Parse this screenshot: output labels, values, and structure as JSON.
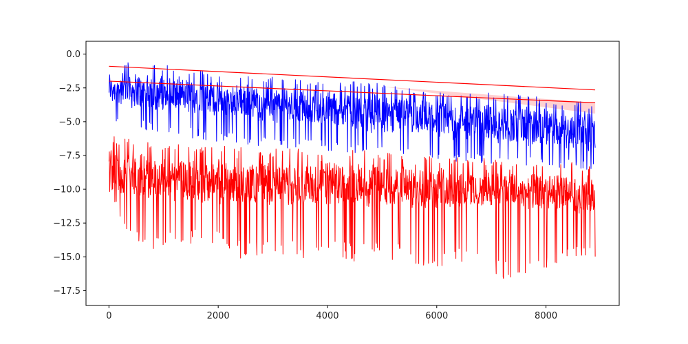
{
  "chart_data": {
    "type": "line",
    "title": "",
    "xlabel": "",
    "ylabel": "",
    "xlim": [
      -420,
      9340
    ],
    "ylim": [
      -18.6,
      0.95
    ],
    "x_ticks": [
      {
        "value": 0,
        "label": "0"
      },
      {
        "value": 2000,
        "label": "2000"
      },
      {
        "value": 4000,
        "label": "4000"
      },
      {
        "value": 6000,
        "label": "6000"
      },
      {
        "value": 8000,
        "label": "8000"
      }
    ],
    "y_ticks": [
      {
        "value": 0,
        "label": "0.0"
      },
      {
        "value": -2.5,
        "label": "−2.5"
      },
      {
        "value": -5,
        "label": "−5.0"
      },
      {
        "value": -7.5,
        "label": "−7.5"
      },
      {
        "value": -10,
        "label": "−10.0"
      },
      {
        "value": -12.5,
        "label": "−12.5"
      },
      {
        "value": -15,
        "label": "−15.0"
      },
      {
        "value": -17.5,
        "label": "−17.5"
      }
    ],
    "grid": false,
    "legend": "none",
    "series": [
      {
        "color": "#0000ff",
        "style": "noisy",
        "x": [
          0,
          500,
          1000,
          1500,
          2000,
          2500,
          3000,
          3500,
          4000,
          4500,
          5000,
          5500,
          6000,
          6500,
          7000,
          7500,
          8000,
          8500,
          8900
        ],
        "center": [
          -2.5,
          -2.7,
          -2.9,
          -3.1,
          -3.3,
          -3.5,
          -3.7,
          -3.9,
          -4.0,
          -4.2,
          -4.4,
          -4.6,
          -4.8,
          -5.0,
          -5.1,
          -5.3,
          -5.5,
          -5.6,
          -5.8
        ],
        "upper": [
          -0.5,
          -0.6,
          -0.8,
          -1.1,
          -1.4,
          -1.6,
          -1.6,
          -1.8,
          -2.0,
          -1.9,
          -2.2,
          -2.5,
          -2.6,
          -2.8,
          -2.8,
          -3.0,
          -3.2,
          -3.3,
          -3.6
        ],
        "lower": [
          -5.0,
          -5.5,
          -6.0,
          -6.2,
          -6.5,
          -6.7,
          -6.9,
          -7.0,
          -7.2,
          -7.4,
          -7.6,
          -7.7,
          -7.9,
          -8.0,
          -8.2,
          -8.3,
          -8.4,
          -8.5,
          -8.6
        ]
      },
      {
        "color": "#ff0000",
        "style": "noisy",
        "x": [
          0,
          500,
          1000,
          1500,
          2000,
          2500,
          3000,
          3500,
          4000,
          4500,
          5000,
          5500,
          6000,
          6500,
          7000,
          7500,
          8000,
          8500,
          8900
        ],
        "center": [
          -8.6,
          -9.0,
          -9.2,
          -9.3,
          -9.4,
          -9.5,
          -9.5,
          -9.6,
          -9.6,
          -9.7,
          -9.7,
          -9.8,
          -9.9,
          -10.0,
          -10.0,
          -10.1,
          -10.2,
          -10.3,
          -10.4
        ],
        "upper": [
          -6.0,
          -6.3,
          -6.6,
          -6.7,
          -6.5,
          -6.8,
          -7.0,
          -6.9,
          -6.9,
          -7.1,
          -7.2,
          -7.3,
          -7.5,
          -7.7,
          -7.7,
          -7.8,
          -7.9,
          -8.0,
          -8.3
        ],
        "lower": [
          -10.6,
          -14.4,
          -14.4,
          -14.0,
          -14.0,
          -15.6,
          -14.5,
          -15.3,
          -14.6,
          -15.5,
          -15.0,
          -15.6,
          -15.9,
          -15.4,
          -16.0,
          -17.6,
          -16.4,
          -15.0,
          -15.6
        ]
      }
    ],
    "trend_lines": [
      {
        "color": "#ff0000",
        "x": [
          0,
          8900
        ],
        "y": [
          -0.9,
          -2.65
        ]
      },
      {
        "color": "#ff0000",
        "x": [
          0,
          8900
        ],
        "y": [
          -2.0,
          -3.6
        ]
      }
    ],
    "shaded_band": {
      "color": "#ff9999",
      "x": [
        5000,
        8900
      ],
      "lower": [
        -2.4,
        -4.4
      ],
      "upper": [
        -2.4,
        -3.6
      ]
    }
  }
}
